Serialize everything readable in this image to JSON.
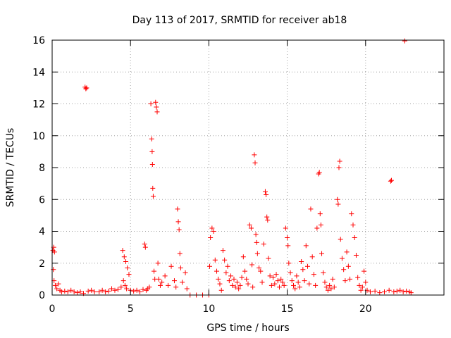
{
  "chart_data": {
    "type": "scatter",
    "title": "Day 113 of 2017, SRMTID for receiver ab18",
    "xlabel": "GPS time / hours",
    "ylabel": "SRMTID / TECUs",
    "xlim": [
      0,
      25
    ],
    "ylim": [
      0,
      16
    ],
    "xticks": [
      0,
      5,
      10,
      15,
      20
    ],
    "yticks": [
      0,
      2,
      4,
      6,
      8,
      10,
      12,
      14,
      16
    ],
    "grid": true,
    "marker": "plus",
    "color": "#ff0000",
    "series": [
      {
        "points": [
          [
            0.05,
            2.8
          ],
          [
            0.1,
            3.0
          ],
          [
            0.15,
            2.7
          ],
          [
            0.08,
            1.6
          ],
          [
            0.12,
            0.9
          ],
          [
            0.2,
            0.6
          ],
          [
            0.3,
            0.4
          ],
          [
            0.4,
            0.7
          ],
          [
            0.5,
            0.3
          ],
          [
            0.6,
            0.2
          ],
          [
            0.8,
            0.25
          ],
          [
            1.0,
            0.2
          ],
          [
            1.2,
            0.3
          ],
          [
            1.4,
            0.2
          ],
          [
            1.6,
            0.15
          ],
          [
            1.8,
            0.2
          ],
          [
            2.0,
            0.1
          ],
          [
            2.3,
            0.25
          ],
          [
            2.5,
            0.3
          ],
          [
            2.7,
            0.2
          ],
          [
            2.1,
            13.05
          ],
          [
            2.15,
            12.95
          ],
          [
            2.2,
            13.0
          ],
          [
            3.0,
            0.2
          ],
          [
            3.2,
            0.3
          ],
          [
            3.4,
            0.2
          ],
          [
            3.6,
            0.25
          ],
          [
            3.8,
            0.4
          ],
          [
            4.0,
            0.3
          ],
          [
            4.2,
            0.35
          ],
          [
            4.4,
            0.5
          ],
          [
            4.5,
            2.8
          ],
          [
            4.6,
            2.4
          ],
          [
            4.7,
            2.1
          ],
          [
            4.8,
            1.7
          ],
          [
            4.9,
            1.3
          ],
          [
            4.55,
            0.9
          ],
          [
            4.65,
            0.6
          ],
          [
            4.75,
            0.4
          ],
          [
            5.0,
            0.3
          ],
          [
            5.2,
            0.25
          ],
          [
            5.4,
            0.3
          ],
          [
            5.6,
            0.2
          ],
          [
            5.8,
            0.35
          ],
          [
            5.9,
            3.2
          ],
          [
            5.95,
            3.0
          ],
          [
            6.0,
            0.3
          ],
          [
            6.1,
            0.4
          ],
          [
            6.2,
            0.5
          ],
          [
            6.3,
            12.0
          ],
          [
            6.35,
            9.8
          ],
          [
            6.38,
            9.0
          ],
          [
            6.4,
            8.2
          ],
          [
            6.42,
            6.7
          ],
          [
            6.45,
            6.2
          ],
          [
            6.5,
            1.5
          ],
          [
            6.55,
            1.0
          ],
          [
            6.6,
            12.1
          ],
          [
            6.65,
            11.8
          ],
          [
            6.7,
            11.5
          ],
          [
            6.75,
            2.0
          ],
          [
            6.8,
            1.0
          ],
          [
            6.9,
            0.6
          ],
          [
            7.0,
            0.8
          ],
          [
            7.2,
            1.2
          ],
          [
            7.4,
            0.6
          ],
          [
            7.6,
            1.8
          ],
          [
            7.8,
            0.9
          ],
          [
            7.9,
            0.5
          ],
          [
            8.0,
            5.4
          ],
          [
            8.05,
            4.6
          ],
          [
            8.1,
            4.1
          ],
          [
            8.15,
            2.6
          ],
          [
            8.2,
            1.7
          ],
          [
            8.3,
            0.8
          ],
          [
            8.5,
            1.4
          ],
          [
            8.6,
            0.4
          ],
          [
            8.8,
            0.0
          ],
          [
            9.2,
            0.0
          ],
          [
            9.6,
            0.0
          ],
          [
            10.0,
            0.0
          ],
          [
            10.05,
            1.8
          ],
          [
            10.1,
            3.6
          ],
          [
            10.2,
            4.2
          ],
          [
            10.3,
            4.0
          ],
          [
            10.4,
            2.2
          ],
          [
            10.5,
            1.5
          ],
          [
            10.6,
            1.0
          ],
          [
            10.7,
            0.7
          ],
          [
            10.8,
            0.3
          ],
          [
            10.9,
            2.8
          ],
          [
            11.0,
            2.2
          ],
          [
            11.1,
            1.4
          ],
          [
            11.2,
            1.8
          ],
          [
            11.3,
            0.9
          ],
          [
            11.4,
            1.2
          ],
          [
            11.5,
            0.6
          ],
          [
            11.6,
            1.0
          ],
          [
            11.7,
            0.5
          ],
          [
            11.8,
            0.8
          ],
          [
            11.9,
            0.4
          ],
          [
            12.0,
            0.6
          ],
          [
            12.1,
            1.1
          ],
          [
            12.2,
            2.4
          ],
          [
            12.3,
            1.5
          ],
          [
            12.4,
            1.0
          ],
          [
            12.5,
            0.7
          ],
          [
            12.6,
            4.4
          ],
          [
            12.7,
            4.2
          ],
          [
            12.75,
            1.9
          ],
          [
            12.8,
            0.5
          ],
          [
            12.9,
            8.8
          ],
          [
            12.95,
            8.3
          ],
          [
            13.0,
            3.8
          ],
          [
            13.05,
            3.3
          ],
          [
            13.1,
            2.6
          ],
          [
            13.2,
            1.7
          ],
          [
            13.3,
            1.5
          ],
          [
            13.4,
            0.8
          ],
          [
            13.5,
            3.2
          ],
          [
            13.6,
            6.5
          ],
          [
            13.65,
            6.3
          ],
          [
            13.7,
            4.9
          ],
          [
            13.75,
            4.7
          ],
          [
            13.8,
            2.3
          ],
          [
            13.9,
            1.2
          ],
          [
            14.0,
            0.6
          ],
          [
            14.1,
            1.1
          ],
          [
            14.2,
            0.7
          ],
          [
            14.3,
            1.3
          ],
          [
            14.4,
            0.9
          ],
          [
            14.5,
            0.5
          ],
          [
            14.6,
            1.0
          ],
          [
            14.7,
            0.8
          ],
          [
            14.8,
            0.6
          ],
          [
            14.9,
            4.2
          ],
          [
            15.0,
            3.6
          ],
          [
            15.05,
            3.1
          ],
          [
            15.1,
            2.0
          ],
          [
            15.2,
            1.4
          ],
          [
            15.3,
            0.9
          ],
          [
            15.4,
            0.6
          ],
          [
            15.5,
            0.4
          ],
          [
            15.6,
            1.2
          ],
          [
            15.7,
            0.8
          ],
          [
            15.8,
            0.5
          ],
          [
            15.9,
            2.1
          ],
          [
            16.0,
            1.6
          ],
          [
            16.1,
            0.9
          ],
          [
            16.2,
            3.1
          ],
          [
            16.3,
            1.8
          ],
          [
            16.4,
            0.7
          ],
          [
            16.5,
            5.4
          ],
          [
            16.6,
            2.4
          ],
          [
            16.7,
            1.3
          ],
          [
            16.8,
            0.6
          ],
          [
            16.9,
            4.2
          ],
          [
            17.0,
            7.6
          ],
          [
            17.05,
            7.7
          ],
          [
            17.1,
            5.1
          ],
          [
            17.15,
            4.4
          ],
          [
            17.2,
            2.6
          ],
          [
            17.3,
            1.4
          ],
          [
            17.4,
            0.8
          ],
          [
            17.5,
            0.5
          ],
          [
            17.6,
            0.3
          ],
          [
            17.7,
            0.6
          ],
          [
            17.8,
            0.4
          ],
          [
            17.9,
            1.0
          ],
          [
            18.0,
            0.5
          ],
          [
            18.2,
            6.0
          ],
          [
            18.25,
            5.7
          ],
          [
            18.3,
            8.0
          ],
          [
            18.35,
            8.4
          ],
          [
            18.4,
            3.5
          ],
          [
            18.5,
            2.3
          ],
          [
            18.6,
            1.6
          ],
          [
            18.7,
            0.9
          ],
          [
            18.8,
            2.7
          ],
          [
            18.9,
            1.8
          ],
          [
            19.0,
            1.0
          ],
          [
            19.1,
            5.1
          ],
          [
            19.2,
            4.4
          ],
          [
            19.3,
            3.6
          ],
          [
            19.4,
            2.5
          ],
          [
            19.5,
            1.1
          ],
          [
            19.6,
            0.6
          ],
          [
            19.7,
            0.3
          ],
          [
            19.8,
            0.5
          ],
          [
            19.9,
            1.5
          ],
          [
            20.0,
            0.8
          ],
          [
            20.1,
            0.3
          ],
          [
            20.3,
            0.2
          ],
          [
            20.6,
            0.25
          ],
          [
            20.9,
            0.15
          ],
          [
            21.2,
            0.2
          ],
          [
            21.5,
            0.3
          ],
          [
            21.6,
            7.15
          ],
          [
            21.65,
            7.2
          ],
          [
            21.8,
            0.2
          ],
          [
            22.0,
            0.25
          ],
          [
            22.2,
            0.3
          ],
          [
            22.4,
            0.2
          ],
          [
            22.5,
            15.95
          ],
          [
            22.6,
            0.25
          ],
          [
            22.8,
            0.2
          ],
          [
            22.9,
            0.15
          ]
        ]
      }
    ]
  }
}
